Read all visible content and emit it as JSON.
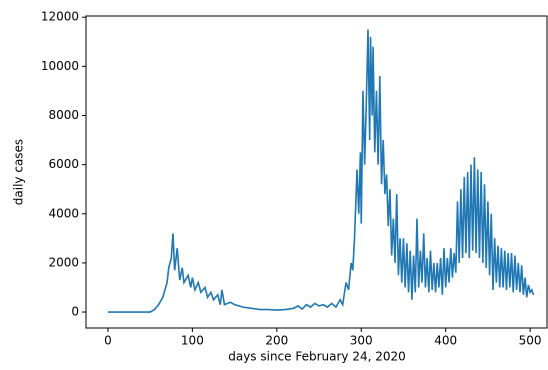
{
  "chart_data": {
    "type": "line",
    "xlabel": "days since February 24, 2020",
    "ylabel": "daily cases",
    "xlim": [
      -26,
      520
    ],
    "ylim": [
      -650,
      12050
    ],
    "xticks": [
      0,
      100,
      200,
      300,
      400,
      500
    ],
    "yticks": [
      0,
      2000,
      4000,
      6000,
      8000,
      10000,
      12000
    ],
    "series": [
      {
        "color": "#1f77b4",
        "x": [
          0,
          10,
          20,
          30,
          40,
          50,
          55,
          60,
          65,
          70,
          72,
          75,
          77,
          79,
          82,
          85,
          88,
          90,
          95,
          98,
          100,
          103,
          107,
          110,
          115,
          118,
          122,
          125,
          130,
          133,
          135,
          138,
          145,
          150,
          160,
          170,
          180,
          190,
          200,
          210,
          220,
          225,
          230,
          235,
          240,
          245,
          250,
          255,
          260,
          265,
          270,
          275,
          278,
          282,
          285,
          288,
          290,
          292,
          295,
          297,
          299,
          300,
          302,
          304,
          306,
          308,
          310,
          311,
          313,
          314,
          316,
          318,
          320,
          322,
          324,
          326,
          328,
          330,
          332,
          334,
          336,
          338,
          340,
          342,
          344,
          346,
          348,
          350,
          352,
          354,
          356,
          358,
          360,
          362,
          364,
          366,
          368,
          370,
          372,
          374,
          376,
          378,
          380,
          382,
          384,
          386,
          388,
          390,
          392,
          394,
          396,
          398,
          400,
          402,
          404,
          406,
          408,
          410,
          412,
          414,
          416,
          418,
          420,
          422,
          424,
          426,
          428,
          430,
          432,
          434,
          436,
          438,
          440,
          442,
          444,
          446,
          448,
          450,
          452,
          454,
          456,
          458,
          460,
          462,
          464,
          466,
          468,
          470,
          472,
          474,
          476,
          478,
          480,
          482,
          484,
          486,
          488,
          490,
          492,
          494,
          496,
          498,
          500,
          502,
          504
        ],
        "values": [
          0,
          0,
          0,
          0,
          0,
          0,
          100,
          300,
          600,
          1200,
          1800,
          2200,
          3200,
          1700,
          2600,
          1300,
          1800,
          1200,
          1500,
          1000,
          1400,
          900,
          1200,
          800,
          1000,
          600,
          800,
          500,
          700,
          300,
          900,
          300,
          400,
          300,
          200,
          150,
          100,
          100,
          80,
          100,
          150,
          250,
          120,
          300,
          200,
          350,
          250,
          300,
          200,
          350,
          200,
          500,
          300,
          1200,
          900,
          2000,
          1700,
          3000,
          5800,
          4000,
          6500,
          3600,
          9000,
          6000,
          8500,
          11500,
          7000,
          11200,
          8000,
          10800,
          6500,
          9000,
          6000,
          9600,
          5200,
          7000,
          4800,
          5600,
          3500,
          5000,
          2300,
          3800,
          2000,
          4800,
          1500,
          3000,
          1200,
          3000,
          1000,
          2800,
          800,
          2500,
          500,
          2300,
          800,
          3800,
          1000,
          2500,
          1200,
          3200,
          1000,
          2200,
          800,
          2500,
          900,
          2000,
          800,
          2000,
          1000,
          2200,
          700,
          2600,
          1000,
          2200,
          1200,
          2600,
          1400,
          2400,
          1600,
          4500,
          2000,
          5000,
          2200,
          5500,
          2400,
          5700,
          2200,
          6000,
          2500,
          6300,
          2400,
          5800,
          2200,
          5700,
          2000,
          5200,
          1800,
          4500,
          1500,
          4000,
          900,
          3000,
          1200,
          2700,
          1000,
          2600,
          1000,
          2500,
          900,
          2400,
          1000,
          2400,
          800,
          2300,
          900,
          2000,
          800,
          1900,
          700,
          1400,
          600,
          1100,
          800,
          900,
          700
        ]
      }
    ]
  }
}
